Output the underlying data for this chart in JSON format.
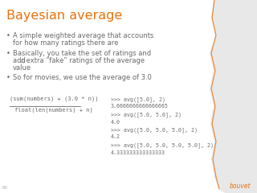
{
  "title": "Bayesian average",
  "title_color": "#E8720C",
  "bg_color": "#FFFFFF",
  "bullet1_line1": "A simple weighted average that accounts",
  "bullet1_line2": "for how many ratings there are",
  "bullet2_line1": "Basically, you take the set of ratings and",
  "bullet2_line2_pre": "add ",
  "bullet2_line2_italic": "n",
  "bullet2_line2_post": " extra “fake” ratings of the average",
  "bullet2_line3": "value",
  "bullet3_line1": "So for movies, we use the average of 3.0",
  "formula_num": "(sum(numbers) + (3.0 * n))",
  "formula_den": "float(len(numbers) + n)",
  "code_lines": [
    ">>> avg([5.0], 2)",
    "3.6666666666666665",
    ">>> avg([5.0, 5.0], 2)",
    "4.0",
    ">>> avg([5.0, 5.0, 5.0], 2)",
    "4.2",
    ">>> avg([5.0, 5.0, 5.0, 5.0], 2)",
    "4.333333333333333"
  ],
  "slide_number": "60",
  "logo_text": "bouvet",
  "logo_color": "#E8720C",
  "text_color": "#6A6A6A",
  "title_fontsize": 11.5,
  "bullet_fontsize": 6.0,
  "code_fontsize": 4.8,
  "formula_fontsize": 5.0,
  "logo_fontsize": 5.5,
  "slide_num_fontsize": 4.0
}
